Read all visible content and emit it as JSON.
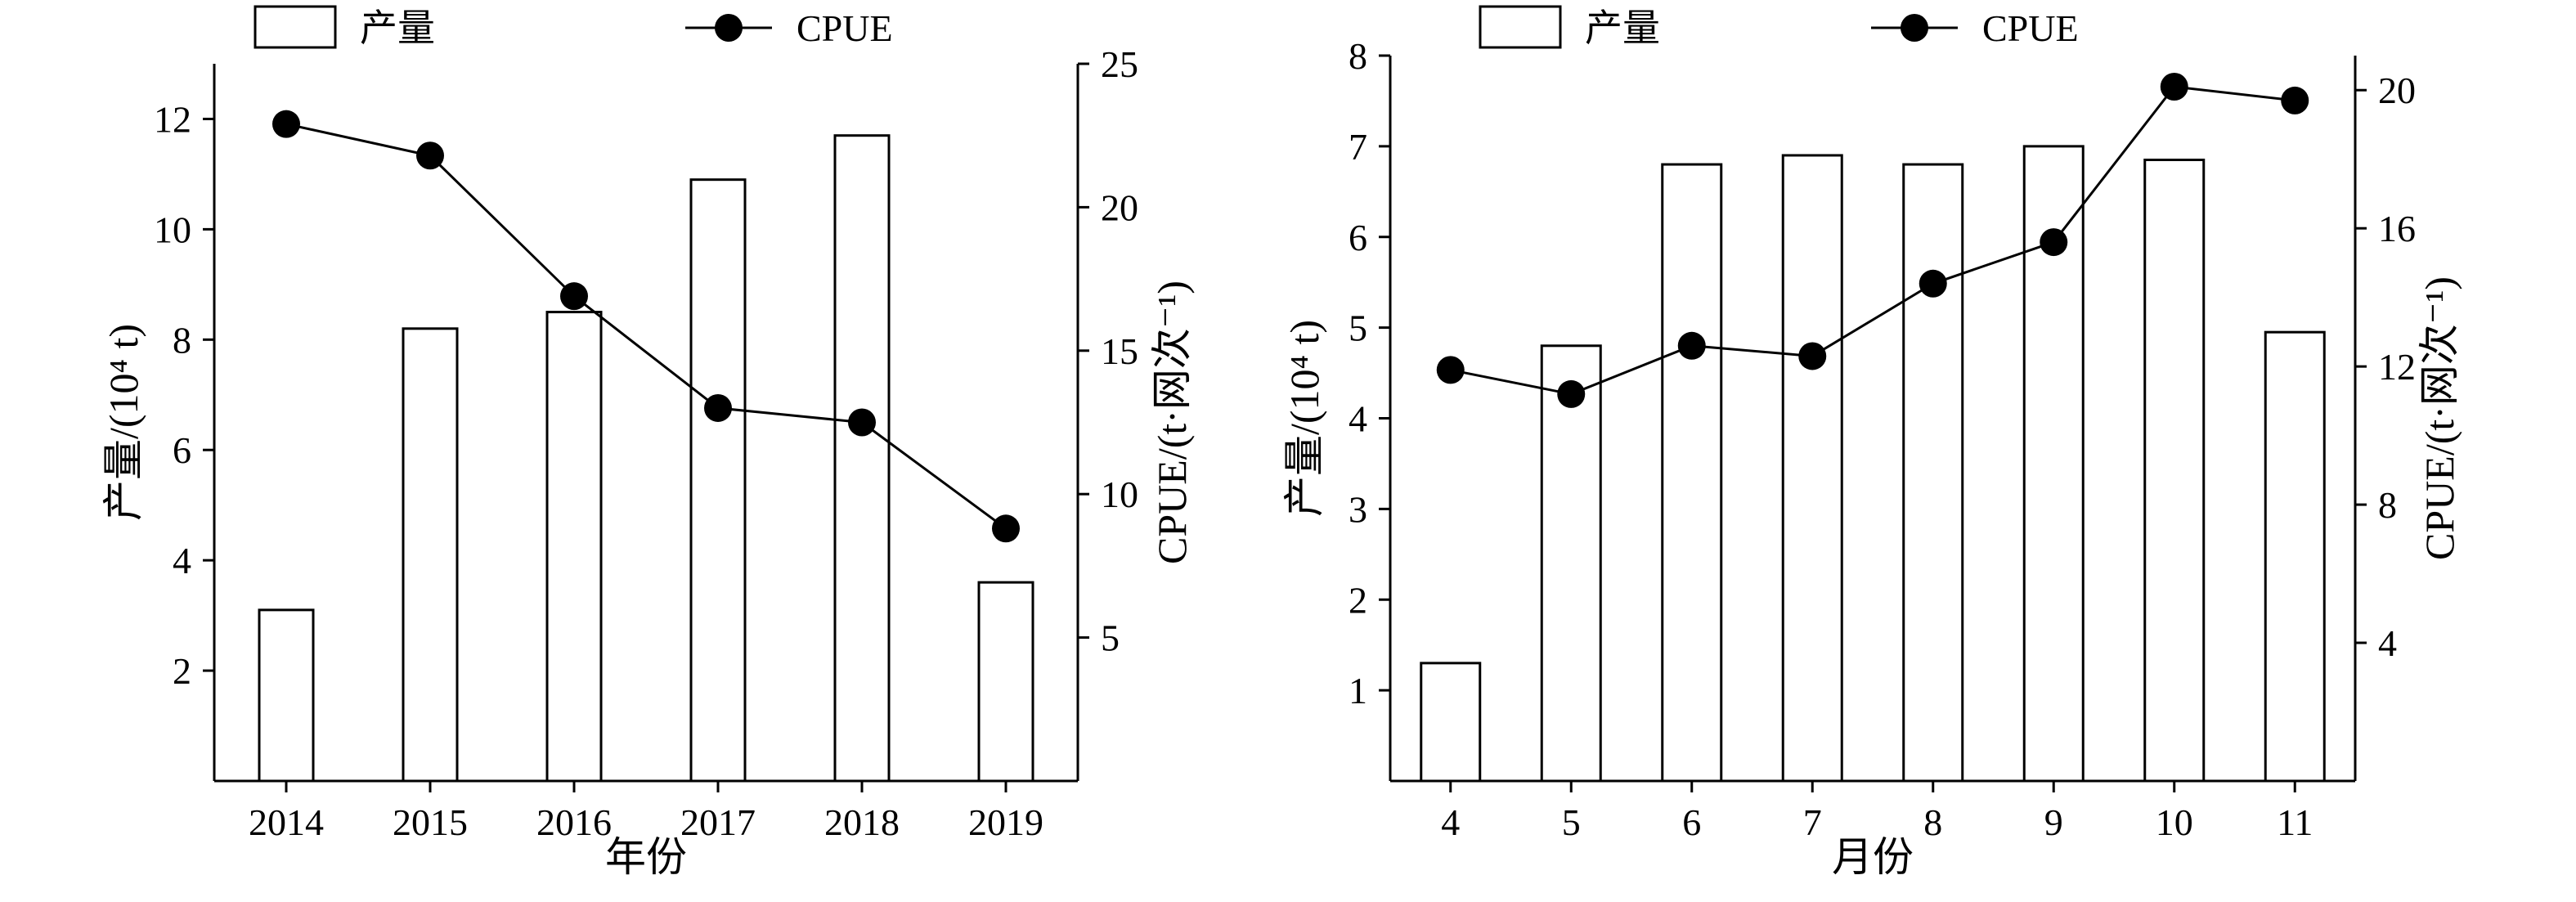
{
  "chart_data": [
    {
      "type": "bar+line",
      "title": "",
      "xlabel": "年份",
      "ylabel": "产量/(10⁴ t)",
      "y2label": "CPUE/(t·网次⁻¹)",
      "categories": [
        "2014",
        "2015",
        "2016",
        "2017",
        "2018",
        "2019"
      ],
      "ylim": [
        0,
        13
      ],
      "yticks": [
        2,
        4,
        6,
        8,
        10,
        12
      ],
      "y2lim": [
        0,
        25
      ],
      "y2ticks": [
        5,
        10,
        15,
        20,
        25
      ],
      "legend": {
        "placement": "top",
        "bar": "产量",
        "line": "CPUE"
      },
      "series": [
        {
          "name": "产量",
          "kind": "bar",
          "axis": "left",
          "values": [
            3.1,
            8.2,
            8.5,
            10.9,
            11.7,
            3.6
          ]
        },
        {
          "name": "CPUE",
          "kind": "line",
          "axis": "right",
          "values": [
            22.9,
            21.8,
            16.9,
            13.0,
            12.5,
            8.8
          ]
        }
      ],
      "grid": false
    },
    {
      "type": "bar+line",
      "title": "",
      "xlabel": "月份",
      "ylabel": "产量/(10⁴ t)",
      "y2label": "CPUE/(t·网次⁻¹)",
      "categories": [
        "4",
        "5",
        "6",
        "7",
        "8",
        "9",
        "10",
        "11"
      ],
      "ylim": [
        0,
        8
      ],
      "yticks": [
        1,
        2,
        3,
        4,
        5,
        6,
        7,
        8
      ],
      "y2lim": [
        0,
        21
      ],
      "y2ticks": [
        4,
        8,
        12,
        16,
        20
      ],
      "legend": {
        "placement": "top",
        "bar": "产量",
        "line": "CPUE"
      },
      "series": [
        {
          "name": "产量",
          "kind": "bar",
          "axis": "left",
          "values": [
            1.3,
            4.8,
            6.8,
            6.9,
            6.8,
            7.0,
            6.85,
            4.95
          ]
        },
        {
          "name": "CPUE",
          "kind": "line",
          "axis": "right",
          "values": [
            11.9,
            11.2,
            12.6,
            12.3,
            14.4,
            15.6,
            20.1,
            19.7
          ]
        }
      ],
      "grid": false
    }
  ]
}
